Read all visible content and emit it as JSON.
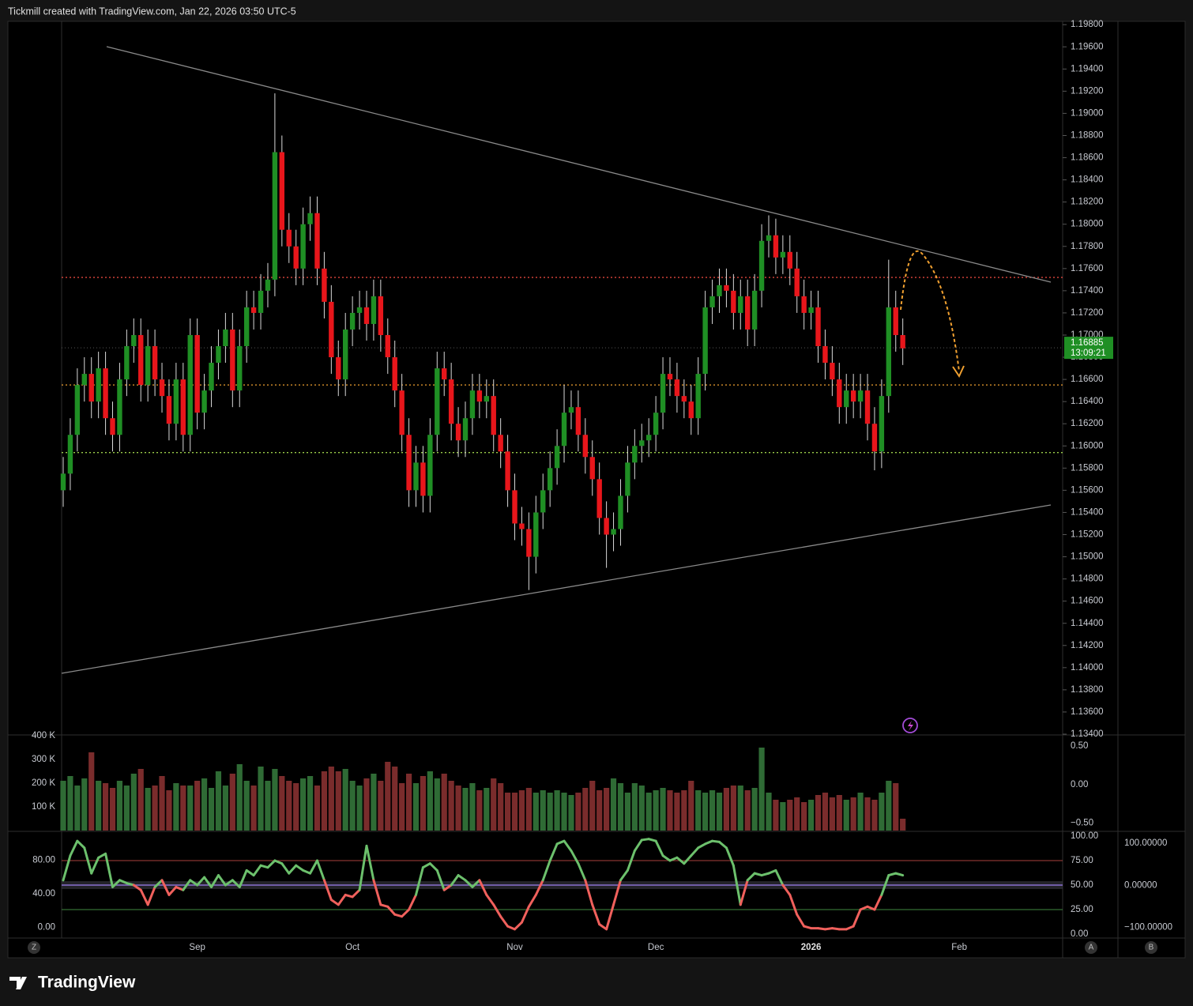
{
  "header": {
    "text": "Tickmill created with TradingView.com, Jan 22, 2026 03:50 UTC-5"
  },
  "footer": {
    "logo": "TradingView"
  },
  "buttons": [
    "Z",
    "A",
    "B"
  ],
  "chart_data": [
    {
      "type": "candlestick",
      "colors": {
        "up": "#1f8f24",
        "down": "#e8161b",
        "wick": "#d9d9d9"
      },
      "open": [
        1.156,
        1.1575,
        1.161,
        1.1655,
        1.1665,
        1.164,
        1.167,
        1.1625,
        1.161,
        1.166,
        1.169,
        1.17,
        1.1655,
        1.169,
        1.166,
        1.1645,
        1.162,
        1.166,
        1.161,
        1.17,
        1.163,
        1.165,
        1.1675,
        1.169,
        1.1705,
        1.165,
        1.169,
        1.1725,
        1.172,
        1.174,
        1.175,
        1.1865,
        1.1795,
        1.178,
        1.176,
        1.18,
        1.181,
        1.176,
        1.173,
        1.168,
        1.166,
        1.1705,
        1.172,
        1.1725,
        1.171,
        1.1735,
        1.17,
        1.168,
        1.165,
        1.161,
        1.156,
        1.1585,
        1.1555,
        1.161,
        1.167,
        1.166,
        1.162,
        1.1605,
        1.1625,
        1.165,
        1.164,
        1.1645,
        1.161,
        1.1595,
        1.156,
        1.153,
        1.1525,
        1.15,
        1.154,
        1.156,
        1.158,
        1.16,
        1.163,
        1.1635,
        1.161,
        1.159,
        1.157,
        1.1535,
        1.152,
        1.1525,
        1.1555,
        1.1585,
        1.16,
        1.1605,
        1.161,
        1.163,
        1.1665,
        1.166,
        1.1645,
        1.164,
        1.1625,
        1.1665,
        1.1725,
        1.1735,
        1.1745,
        1.174,
        1.172,
        1.1735,
        1.1705,
        1.174,
        1.1785,
        1.179,
        1.177,
        1.1775,
        1.176,
        1.1735,
        1.172,
        1.1725,
        1.169,
        1.1675,
        1.166,
        1.1635,
        1.165,
        1.164,
        1.165,
        1.162,
        1.1595,
        1.1645,
        1.1725,
        1.17
      ],
      "high": [
        1.159,
        1.1625,
        1.167,
        1.168,
        1.168,
        1.1685,
        1.1685,
        1.164,
        1.1675,
        1.1705,
        1.1715,
        1.1715,
        1.1705,
        1.1705,
        1.1675,
        1.166,
        1.1675,
        1.1675,
        1.1715,
        1.1715,
        1.1665,
        1.169,
        1.1705,
        1.172,
        1.172,
        1.1705,
        1.174,
        1.174,
        1.1755,
        1.1765,
        1.1918,
        1.188,
        1.181,
        1.1795,
        1.1815,
        1.1825,
        1.1825,
        1.1775,
        1.1745,
        1.1695,
        1.172,
        1.1735,
        1.174,
        1.174,
        1.175,
        1.175,
        1.1715,
        1.1695,
        1.1665,
        1.1625,
        1.16,
        1.16,
        1.1625,
        1.1685,
        1.1685,
        1.1675,
        1.1635,
        1.164,
        1.1665,
        1.1665,
        1.166,
        1.166,
        1.1625,
        1.161,
        1.1575,
        1.1545,
        1.154,
        1.1555,
        1.1575,
        1.1595,
        1.1615,
        1.1655,
        1.165,
        1.165,
        1.1625,
        1.1605,
        1.1585,
        1.155,
        1.154,
        1.157,
        1.16,
        1.1615,
        1.162,
        1.1625,
        1.1645,
        1.168,
        1.168,
        1.1675,
        1.166,
        1.1655,
        1.168,
        1.174,
        1.175,
        1.176,
        1.176,
        1.1755,
        1.175,
        1.175,
        1.1755,
        1.18,
        1.1808,
        1.1805,
        1.179,
        1.179,
        1.1775,
        1.175,
        1.174,
        1.174,
        1.1705,
        1.169,
        1.1675,
        1.1665,
        1.1665,
        1.1665,
        1.1665,
        1.1635,
        1.166,
        1.1768,
        1.174,
        1.1715
      ],
      "low": [
        1.1545,
        1.156,
        1.1595,
        1.164,
        1.1625,
        1.1625,
        1.161,
        1.1595,
        1.1595,
        1.1645,
        1.1675,
        1.164,
        1.164,
        1.1645,
        1.163,
        1.1605,
        1.1605,
        1.1595,
        1.1595,
        1.1615,
        1.1615,
        1.1635,
        1.166,
        1.1675,
        1.1635,
        1.1635,
        1.1675,
        1.1705,
        1.1705,
        1.1725,
        1.1735,
        1.178,
        1.1765,
        1.1745,
        1.1745,
        1.1785,
        1.1745,
        1.1715,
        1.1665,
        1.1645,
        1.1645,
        1.169,
        1.1705,
        1.1695,
        1.1695,
        1.1685,
        1.1665,
        1.1635,
        1.1595,
        1.1545,
        1.1545,
        1.154,
        1.154,
        1.1595,
        1.1645,
        1.1605,
        1.159,
        1.159,
        1.161,
        1.1625,
        1.1625,
        1.1595,
        1.158,
        1.1545,
        1.1515,
        1.151,
        1.147,
        1.1485,
        1.1525,
        1.1545,
        1.1565,
        1.1585,
        1.1615,
        1.1595,
        1.1575,
        1.1555,
        1.152,
        1.149,
        1.1505,
        1.151,
        1.154,
        1.157,
        1.1585,
        1.159,
        1.1595,
        1.1615,
        1.1645,
        1.163,
        1.1625,
        1.161,
        1.161,
        1.165,
        1.171,
        1.172,
        1.1725,
        1.1705,
        1.1705,
        1.169,
        1.169,
        1.1725,
        1.177,
        1.1755,
        1.1755,
        1.1745,
        1.172,
        1.1705,
        1.1705,
        1.1675,
        1.166,
        1.1645,
        1.162,
        1.162,
        1.1625,
        1.1625,
        1.1605,
        1.1578,
        1.158,
        1.163,
        1.1685,
        1.1673
      ],
      "close": [
        1.1575,
        1.161,
        1.1655,
        1.1665,
        1.164,
        1.167,
        1.1625,
        1.161,
        1.166,
        1.169,
        1.17,
        1.1655,
        1.169,
        1.166,
        1.1645,
        1.162,
        1.166,
        1.161,
        1.17,
        1.163,
        1.165,
        1.1675,
        1.169,
        1.1705,
        1.165,
        1.169,
        1.1725,
        1.172,
        1.174,
        1.175,
        1.1865,
        1.1795,
        1.178,
        1.176,
        1.18,
        1.181,
        1.176,
        1.173,
        1.168,
        1.166,
        1.1705,
        1.172,
        1.1725,
        1.171,
        1.1735,
        1.17,
        1.168,
        1.165,
        1.161,
        1.156,
        1.1585,
        1.1555,
        1.161,
        1.167,
        1.166,
        1.162,
        1.1605,
        1.1625,
        1.165,
        1.164,
        1.1645,
        1.161,
        1.1595,
        1.156,
        1.153,
        1.1525,
        1.15,
        1.154,
        1.156,
        1.158,
        1.16,
        1.163,
        1.1635,
        1.161,
        1.159,
        1.157,
        1.1535,
        1.152,
        1.1525,
        1.1555,
        1.1585,
        1.16,
        1.1605,
        1.161,
        1.163,
        1.1665,
        1.166,
        1.1645,
        1.164,
        1.1625,
        1.1665,
        1.1725,
        1.1735,
        1.1745,
        1.174,
        1.172,
        1.1735,
        1.1705,
        1.174,
        1.1785,
        1.179,
        1.177,
        1.1775,
        1.176,
        1.1735,
        1.172,
        1.1725,
        1.169,
        1.1675,
        1.166,
        1.1635,
        1.165,
        1.164,
        1.165,
        1.162,
        1.1595,
        1.1645,
        1.1725,
        1.17,
        1.1688
      ],
      "xticks": [
        {
          "value": 19,
          "label": "Sep"
        },
        {
          "value": 41,
          "label": "Oct"
        },
        {
          "value": 64,
          "label": "Nov"
        },
        {
          "value": 84,
          "label": "Dec"
        },
        {
          "value": 106,
          "label": "2026"
        },
        {
          "value": 127,
          "label": "Feb"
        }
      ],
      "ylim": [
        1.134,
        1.1983
      ],
      "yticks": [
        {
          "value": 1.198,
          "label": "1.19800"
        },
        {
          "value": 1.196,
          "label": "1.19600"
        },
        {
          "value": 1.194,
          "label": "1.19400"
        },
        {
          "value": 1.192,
          "label": "1.19200"
        },
        {
          "value": 1.19,
          "label": "1.19000"
        },
        {
          "value": 1.188,
          "label": "1.18800"
        },
        {
          "value": 1.186,
          "label": "1.18600"
        },
        {
          "value": 1.184,
          "label": "1.18400"
        },
        {
          "value": 1.182,
          "label": "1.18200"
        },
        {
          "value": 1.18,
          "label": "1.18000"
        },
        {
          "value": 1.178,
          "label": "1.17800"
        },
        {
          "value": 1.176,
          "label": "1.17600"
        },
        {
          "value": 1.174,
          "label": "1.17400"
        },
        {
          "value": 1.172,
          "label": "1.17200"
        },
        {
          "value": 1.17,
          "label": "1.17000"
        },
        {
          "value": 1.168,
          "label": "1.16800"
        },
        {
          "value": 1.166,
          "label": "1.16600"
        },
        {
          "value": 1.164,
          "label": "1.16400"
        },
        {
          "value": 1.162,
          "label": "1.16200"
        },
        {
          "value": 1.16,
          "label": "1.16000"
        },
        {
          "value": 1.158,
          "label": "1.15800"
        },
        {
          "value": 1.156,
          "label": "1.15600"
        },
        {
          "value": 1.154,
          "label": "1.15400"
        },
        {
          "value": 1.152,
          "label": "1.15200"
        },
        {
          "value": 1.15,
          "label": "1.15000"
        },
        {
          "value": 1.148,
          "label": "1.14800"
        },
        {
          "value": 1.146,
          "label": "1.14600"
        },
        {
          "value": 1.144,
          "label": "1.14400"
        },
        {
          "value": 1.142,
          "label": "1.14200"
        },
        {
          "value": 1.14,
          "label": "1.14000"
        },
        {
          "value": 1.138,
          "label": "1.13800"
        },
        {
          "value": 1.136,
          "label": "1.13600"
        },
        {
          "value": 1.134,
          "label": "1.13400"
        }
      ],
      "levels": [
        {
          "value": 1.1752,
          "color": "#e0453c"
        },
        {
          "value": 1.1655,
          "color": "#f0a030"
        },
        {
          "value": 1.1594,
          "color": "#9ccf4a"
        }
      ],
      "last_price": 1.16885,
      "countdown": "13:09:21"
    },
    {
      "type": "bar",
      "up_color": "#2f6b35",
      "down_color": "#7a2c2c",
      "values": [
        210000,
        230000,
        190000,
        220000,
        330000,
        210000,
        200000,
        180000,
        210000,
        190000,
        240000,
        260000,
        180000,
        190000,
        230000,
        170000,
        200000,
        190000,
        190000,
        210000,
        220000,
        180000,
        250000,
        190000,
        240000,
        280000,
        210000,
        190000,
        270000,
        210000,
        260000,
        230000,
        210000,
        200000,
        220000,
        230000,
        190000,
        250000,
        270000,
        250000,
        260000,
        210000,
        190000,
        220000,
        240000,
        210000,
        290000,
        270000,
        200000,
        240000,
        200000,
        230000,
        250000,
        220000,
        240000,
        210000,
        190000,
        180000,
        200000,
        170000,
        180000,
        220000,
        200000,
        160000,
        160000,
        170000,
        180000,
        160000,
        170000,
        160000,
        170000,
        160000,
        150000,
        160000,
        180000,
        210000,
        170000,
        180000,
        220000,
        200000,
        160000,
        200000,
        190000,
        160000,
        170000,
        180000,
        170000,
        160000,
        170000,
        210000,
        170000,
        160000,
        170000,
        160000,
        180000,
        190000,
        190000,
        170000,
        180000,
        350000,
        160000,
        130000,
        120000,
        130000,
        140000,
        120000,
        130000,
        150000,
        160000,
        140000,
        150000,
        130000,
        140000,
        160000,
        140000,
        130000,
        160000,
        210000,
        200000,
        50000
      ],
      "ylim": [
        0,
        400000
      ],
      "yticks": [
        {
          "value": 100000,
          "label": "100 K"
        },
        {
          "value": 200000,
          "label": "200 K"
        },
        {
          "value": 300000,
          "label": "300 K"
        },
        {
          "value": 400000,
          "label": "400 K"
        }
      ],
      "y2lim": [
        -0.598,
        0.634
      ],
      "y2ticks": [
        {
          "value": 0.5,
          "label": "0.50"
        },
        {
          "value": 0,
          "label": "0.00"
        },
        {
          "value": -0.5,
          "label": "−0.50"
        }
      ]
    },
    {
      "type": "line",
      "series": [
        {
          "up_color": "#6cc06c",
          "down_color": "#f0605c",
          "values": [
            55,
            80,
            95,
            88,
            62,
            78,
            82,
            48,
            55,
            52,
            50,
            45,
            30,
            48,
            55,
            40,
            48,
            45,
            55,
            50,
            58,
            48,
            60,
            50,
            55,
            48,
            65,
            60,
            70,
            68,
            75,
            72,
            62,
            70,
            65,
            62,
            75,
            55,
            35,
            30,
            40,
            38,
            45,
            90,
            55,
            30,
            28,
            20,
            18,
            25,
            40,
            68,
            72,
            65,
            45,
            50,
            60,
            55,
            48,
            55,
            40,
            30,
            18,
            8,
            5,
            12,
            28,
            40,
            55,
            75,
            92,
            95,
            85,
            72,
            55,
            30,
            10,
            5,
            30,
            55,
            65,
            85,
            96,
            97,
            95,
            80,
            75,
            78,
            72,
            80,
            88,
            92,
            95,
            94,
            88,
            70,
            30,
            55,
            62,
            60,
            62,
            65,
            50,
            40,
            20,
            8,
            6,
            6,
            5,
            6,
            5,
            5,
            8,
            25,
            28,
            25,
            40,
            60,
            62,
            60
          ]
        }
      ],
      "midline": 50,
      "band": [
        46,
        54
      ],
      "hlines": [
        {
          "value": 75,
          "color": "#a8403c"
        },
        {
          "value": 25,
          "color": "#3f8a3f"
        }
      ],
      "ylim": [
        -3.2,
        102.4
      ],
      "yticks": [
        {
          "value": 100,
          "label": "100.00"
        },
        {
          "value": 75,
          "label": "75.00"
        },
        {
          "value": 50,
          "label": "50.00"
        },
        {
          "value": 25,
          "label": "25.00"
        },
        {
          "value": 0,
          "label": "0.00"
        }
      ],
      "y2lim": [
        -11.8,
        111.5
      ],
      "y2ticks": [
        {
          "value": 80,
          "label": "80.00"
        },
        {
          "value": 40,
          "label": "40.00"
        },
        {
          "value": 0,
          "label": "0.00"
        }
      ],
      "y3lim": [
        -123.6,
        122.6
      ],
      "y3ticks": [
        {
          "value": 100,
          "label": "100.00000"
        },
        {
          "value": 0,
          "label": "0.00000"
        },
        {
          "value": -100,
          "label": "−100.00000"
        }
      ]
    }
  ]
}
